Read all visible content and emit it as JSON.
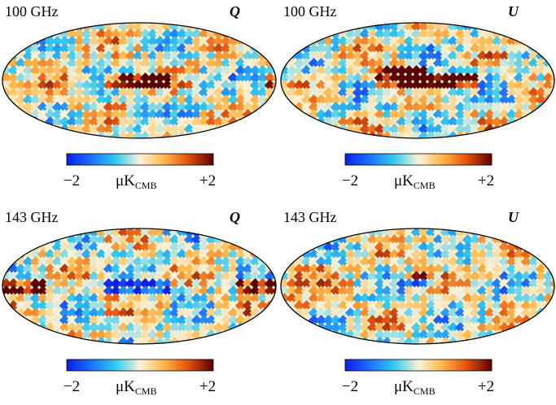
{
  "panels": [
    {
      "frequency": "100 GHz",
      "stokes": "Q",
      "colorbar": {
        "min_label": "−2",
        "unit": "μK",
        "unit_sub": "CMB",
        "max_label": "+2"
      }
    },
    {
      "frequency": "100 GHz",
      "stokes": "U",
      "colorbar": {
        "min_label": "−2",
        "unit": "μK",
        "unit_sub": "CMB",
        "max_label": "+2"
      }
    },
    {
      "frequency": "143 GHz",
      "stokes": "Q",
      "colorbar": {
        "min_label": "−2",
        "unit": "μK",
        "unit_sub": "CMB",
        "max_label": "+2"
      }
    },
    {
      "frequency": "143 GHz",
      "stokes": "U",
      "colorbar": {
        "min_label": "−2",
        "unit": "μK",
        "unit_sub": "CMB",
        "max_label": "+2"
      }
    }
  ]
}
